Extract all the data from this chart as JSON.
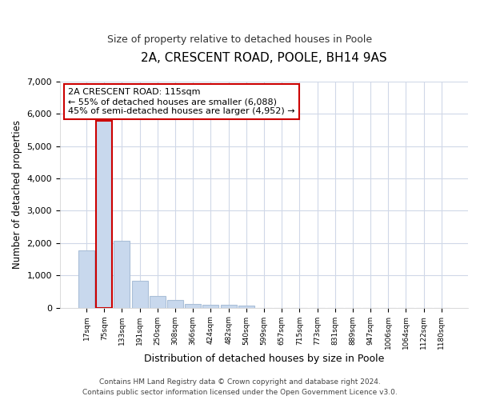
{
  "title": "2A, CRESCENT ROAD, POOLE, BH14 9AS",
  "subtitle": "Size of property relative to detached houses in Poole",
  "xlabel": "Distribution of detached houses by size in Poole",
  "ylabel": "Number of detached properties",
  "bar_color": "#c8d8ed",
  "bar_edge_color": "#aabfd8",
  "highlight_bar_index": 1,
  "highlight_bar_edge_color": "#cc0000",
  "annotation_title": "2A CRESCENT ROAD: 115sqm",
  "annotation_line1": "← 55% of detached houses are smaller (6,088)",
  "annotation_line2": "45% of semi-detached houses are larger (4,952) →",
  "annotation_box_facecolor": "#ffffff",
  "annotation_box_edgecolor": "#cc0000",
  "categories": [
    "17sqm",
    "75sqm",
    "133sqm",
    "191sqm",
    "250sqm",
    "308sqm",
    "366sqm",
    "424sqm",
    "482sqm",
    "540sqm",
    "599sqm",
    "657sqm",
    "715sqm",
    "773sqm",
    "831sqm",
    "889sqm",
    "947sqm",
    "1006sqm",
    "1064sqm",
    "1122sqm",
    "1180sqm"
  ],
  "values": [
    1780,
    5775,
    2060,
    830,
    365,
    230,
    120,
    95,
    90,
    70,
    0,
    0,
    0,
    0,
    0,
    0,
    0,
    0,
    0,
    0,
    0
  ],
  "ylim": [
    0,
    7000
  ],
  "yticks": [
    0,
    1000,
    2000,
    3000,
    4000,
    5000,
    6000,
    7000
  ],
  "footer_line1": "Contains HM Land Registry data © Crown copyright and database right 2024.",
  "footer_line2": "Contains public sector information licensed under the Open Government Licence v3.0.",
  "bg_color": "#ffffff",
  "plot_bg_color": "#ffffff",
  "grid_color": "#d0d8e8"
}
